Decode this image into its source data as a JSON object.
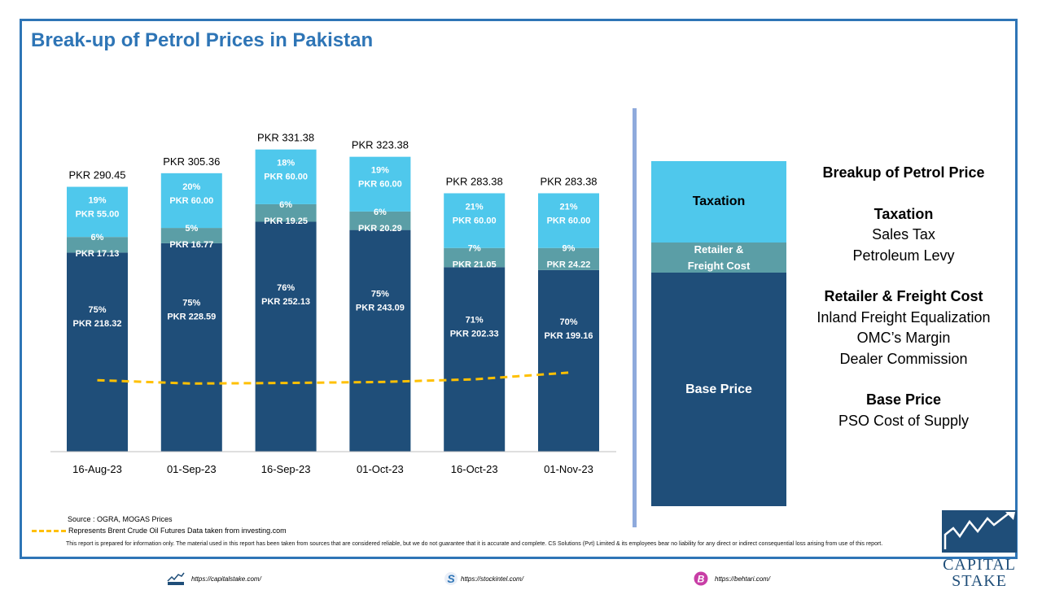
{
  "title": "Break-up of Petrol Prices in Pakistan",
  "chart_data": {
    "type": "bar",
    "stacked": true,
    "categories": [
      "16-Aug-23",
      "01-Sep-23",
      "16-Sep-23",
      "01-Oct-23",
      "16-Oct-23",
      "01-Nov-23"
    ],
    "totals": [
      "PKR 290.45",
      "PKR 305.36",
      "PKR 331.38",
      "PKR 323.38",
      "PKR 283.38",
      "PKR 283.38"
    ],
    "series": [
      {
        "name": "Base Price",
        "color": "#1f4e79",
        "values": [
          218.32,
          228.59,
          252.13,
          243.09,
          202.33,
          199.16
        ],
        "labels": [
          "PKR 218.32",
          "PKR 228.59",
          "PKR 252.13",
          "PKR 243.09",
          "PKR 202.33",
          "PKR 199.16"
        ],
        "percents": [
          "75%",
          "75%",
          "76%",
          "75%",
          "71%",
          "70%"
        ]
      },
      {
        "name": "Retailer & Freight Cost",
        "color": "#5b9ea6",
        "values": [
          17.13,
          16.77,
          19.25,
          20.29,
          21.05,
          24.22
        ],
        "labels": [
          "PKR 17.13",
          "PKR 16.77",
          "PKR 19.25",
          "PKR 20.29",
          "PKR 21.05",
          "PKR 24.22"
        ],
        "percents": [
          "6%",
          "5%",
          "6%",
          "6%",
          "7%",
          "9%"
        ]
      },
      {
        "name": "Taxation",
        "color": "#4fc8ec",
        "values": [
          55.0,
          60.0,
          60.0,
          60.0,
          60.0,
          60.0
        ],
        "labels": [
          "PKR 55.00",
          "PKR 60.00",
          "PKR 60.00",
          "PKR 60.00",
          "PKR 60.00",
          "PKR 60.00"
        ],
        "percents": [
          "19%",
          "20%",
          "18%",
          "19%",
          "21%",
          "21%"
        ]
      }
    ],
    "brent_line": {
      "color": "#ffc000",
      "style": "dashed",
      "relative_values": [
        0.236,
        0.225,
        0.227,
        0.23,
        0.239,
        0.261
      ]
    },
    "ylim": [
      0,
      332
    ],
    "grid": false
  },
  "legend_box": {
    "taxation": "Taxation",
    "retailer_line1": "Retailer &",
    "retailer_line2": "Freight Cost",
    "base": "Base Price"
  },
  "info": {
    "heading": "Breakup of Petrol Price",
    "taxation_heading": "Taxation",
    "taxation_items": [
      "Sales Tax",
      "Petroleum Levy"
    ],
    "retailer_heading": "Retailer & Freight Cost",
    "retailer_items": [
      "Inland Freight Equalization",
      "OMC’s Margin",
      "Dealer Commission"
    ],
    "base_heading": "Base Price",
    "base_items": [
      "PSO Cost of Supply"
    ]
  },
  "notes": {
    "source": "Source : OGRA, MOGAS Prices",
    "brent": "Represents Brent Crude Oil Futures Data taken from investing.com",
    "disclaimer": "This report is prepared for information only. The material used in this report has been taken from sources that are considered reliable, but we do not guarantee that it is accurate and complete. CS Solutions (Pvt) Limited & its employees bear no liability for any direct or indirect consequential loss arising from use of this report."
  },
  "footer": {
    "link1": "https://capitalstake.com/",
    "link2": "https://stockintel.com/",
    "link3": "https://behtari.com/"
  },
  "logo": {
    "line1": "CAPITAL",
    "line2": "STAKE"
  },
  "colors": {
    "accent": "#2e75b6",
    "base": "#1f4e79",
    "retailer": "#5b9ea6",
    "taxation": "#4fc8ec",
    "brent": "#ffc000"
  }
}
